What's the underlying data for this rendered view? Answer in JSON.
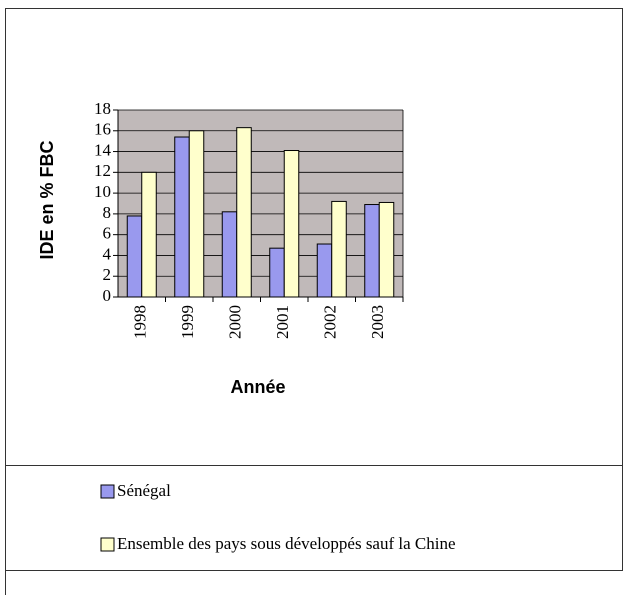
{
  "chart_data": {
    "type": "bar",
    "categories": [
      "1998",
      "1999",
      "2000",
      "2001",
      "2002",
      "2003"
    ],
    "series": [
      {
        "name": "Sénégal",
        "color": "#9999ee",
        "values": [
          7.8,
          15.4,
          8.2,
          4.7,
          5.1,
          8.9
        ]
      },
      {
        "name": "Ensemble des pays sous développés sauf la Chine",
        "color": "#ffffcc",
        "values": [
          12.0,
          16.0,
          16.3,
          14.1,
          9.2,
          9.1
        ]
      }
    ],
    "x_label": "Année",
    "y_label": "IDE en % FBC",
    "ylim": [
      0,
      18
    ],
    "yticks": [
      0,
      2,
      4,
      6,
      8,
      10,
      12,
      14,
      16,
      18
    ],
    "grid": true,
    "legend": "bottom"
  }
}
